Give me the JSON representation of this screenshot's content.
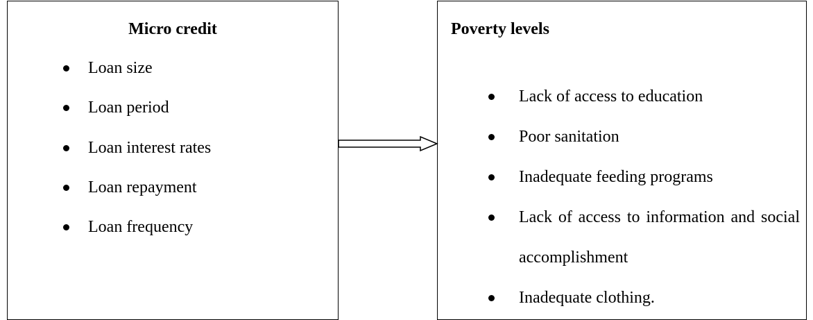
{
  "left": {
    "title": "Micro credit",
    "items": [
      "Loan size",
      "Loan period",
      "Loan interest rates",
      "Loan repayment",
      "Loan frequency"
    ]
  },
  "right": {
    "title": "Poverty levels",
    "items": [
      "Lack of access to education",
      "Poor sanitation",
      "Inadequate feeding programs",
      "Lack of access to information and social accomplishment",
      "Inadequate clothing."
    ]
  }
}
